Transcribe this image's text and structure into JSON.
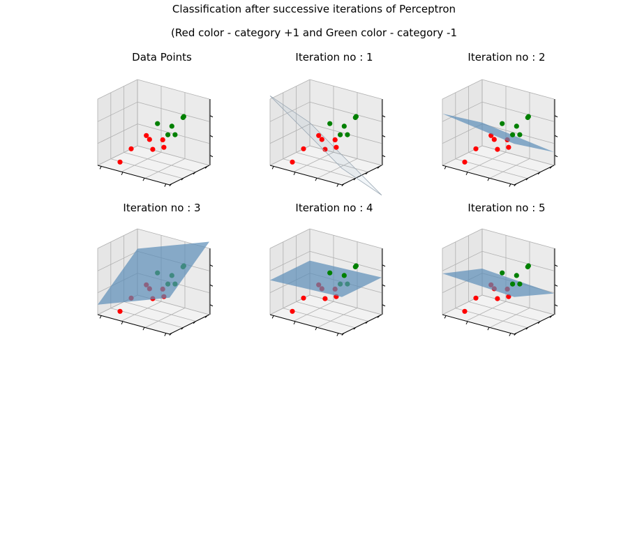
{
  "figure": {
    "title": "Classification after successive iterations of Perceptron",
    "subtitle": "(Red color - category +1  and Green color - category -1"
  },
  "colors": {
    "category_pos": "#ff0000",
    "category_neg": "#008000",
    "plane": "#5b8db8",
    "pane_gray": "#f2f2f2",
    "grid": "#b0b0b0"
  },
  "chart_data": [
    {
      "type": "scatter",
      "projection": "3d",
      "title": "Data Points",
      "grid": true,
      "series": [
        {
          "name": "category +1",
          "color": "#ff0000",
          "points": [
            [
              0.4,
              0.5,
              0.42
            ],
            [
              0.5,
              0.4,
              0.42
            ],
            [
              0.6,
              0.55,
              0.4
            ],
            [
              0.7,
              0.4,
              0.36
            ],
            [
              0.3,
              0.3,
              0.25
            ],
            [
              0.6,
              0.3,
              0.33
            ],
            [
              0.2,
              0.2,
              0.05
            ]
          ]
        },
        {
          "name": "category -1",
          "color": "#008000",
          "points": [
            [
              0.8,
              0.7,
              0.75
            ],
            [
              0.8,
              0.72,
              0.76
            ],
            [
              0.5,
              0.6,
              0.6
            ],
            [
              0.7,
              0.6,
              0.62
            ],
            [
              0.7,
              0.5,
              0.52
            ],
            [
              0.8,
              0.5,
              0.55
            ]
          ]
        }
      ],
      "plane": null
    },
    {
      "type": "scatter",
      "projection": "3d",
      "title": "Iteration no : 1",
      "grid": true,
      "series": [
        {
          "name": "category +1",
          "color": "#ff0000",
          "points": [
            [
              0.4,
              0.5,
              0.42
            ],
            [
              0.5,
              0.4,
              0.42
            ],
            [
              0.6,
              0.55,
              0.4
            ],
            [
              0.7,
              0.4,
              0.36
            ],
            [
              0.3,
              0.3,
              0.25
            ],
            [
              0.6,
              0.3,
              0.33
            ],
            [
              0.2,
              0.2,
              0.05
            ]
          ]
        },
        {
          "name": "category -1",
          "color": "#008000",
          "points": [
            [
              0.8,
              0.7,
              0.75
            ],
            [
              0.8,
              0.72,
              0.76
            ],
            [
              0.5,
              0.6,
              0.6
            ],
            [
              0.7,
              0.6,
              0.62
            ],
            [
              0.7,
              0.5,
              0.52
            ],
            [
              0.8,
              0.5,
              0.55
            ]
          ]
        }
      ],
      "plane": {
        "z00": 1.05,
        "z10": 0.25,
        "z01": 0.35,
        "z11": -0.45,
        "opacity": 0.08,
        "edge": true
      }
    },
    {
      "type": "scatter",
      "projection": "3d",
      "title": "Iteration no : 2",
      "grid": true,
      "series": [
        {
          "name": "category +1",
          "color": "#ff0000",
          "points": [
            [
              0.4,
              0.5,
              0.42
            ],
            [
              0.5,
              0.4,
              0.42
            ],
            [
              0.6,
              0.55,
              0.4
            ],
            [
              0.7,
              0.4,
              0.36
            ],
            [
              0.3,
              0.3,
              0.25
            ],
            [
              0.6,
              0.3,
              0.33
            ],
            [
              0.2,
              0.2,
              0.05
            ]
          ]
        },
        {
          "name": "category -1",
          "color": "#008000",
          "points": [
            [
              0.8,
              0.7,
              0.75
            ],
            [
              0.8,
              0.72,
              0.76
            ],
            [
              0.5,
              0.6,
              0.6
            ],
            [
              0.7,
              0.6,
              0.62
            ],
            [
              0.7,
              0.5,
              0.52
            ],
            [
              0.8,
              0.5,
              0.55
            ]
          ]
        }
      ],
      "plane": {
        "z00": 0.78,
        "z10": 0.62,
        "z01": 0.35,
        "z11": 0.2,
        "opacity": 0.7,
        "edge": false
      }
    },
    {
      "type": "scatter",
      "projection": "3d",
      "title": "Iteration no : 3",
      "grid": true,
      "series": [
        {
          "name": "category +1",
          "color": "#ff0000",
          "points": [
            [
              0.4,
              0.5,
              0.42
            ],
            [
              0.5,
              0.4,
              0.42
            ],
            [
              0.6,
              0.55,
              0.4
            ],
            [
              0.7,
              0.4,
              0.36
            ],
            [
              0.3,
              0.3,
              0.25
            ],
            [
              0.6,
              0.3,
              0.33
            ],
            [
              0.2,
              0.2,
              0.05
            ]
          ]
        },
        {
          "name": "category -1",
          "color": "#008000",
          "points": [
            [
              0.8,
              0.7,
              0.75
            ],
            [
              0.8,
              0.72,
              0.76
            ],
            [
              0.5,
              0.6,
              0.6
            ],
            [
              0.7,
              0.6,
              0.62
            ],
            [
              0.7,
              0.5,
              0.52
            ],
            [
              0.8,
              0.5,
              0.55
            ]
          ]
        }
      ],
      "plane": {
        "z00": 0.15,
        "z10": 0.55,
        "z01": 0.7,
        "z11": 1.1,
        "opacity": 0.7,
        "edge": false
      }
    },
    {
      "type": "scatter",
      "projection": "3d",
      "title": "Iteration no : 4",
      "grid": true,
      "series": [
        {
          "name": "category +1",
          "color": "#ff0000",
          "points": [
            [
              0.4,
              0.5,
              0.42
            ],
            [
              0.5,
              0.4,
              0.42
            ],
            [
              0.6,
              0.55,
              0.4
            ],
            [
              0.7,
              0.4,
              0.36
            ],
            [
              0.3,
              0.3,
              0.25
            ],
            [
              0.6,
              0.3,
              0.33
            ],
            [
              0.2,
              0.2,
              0.05
            ]
          ]
        },
        {
          "name": "category -1",
          "color": "#008000",
          "points": [
            [
              0.8,
              0.7,
              0.75
            ],
            [
              0.8,
              0.72,
              0.76
            ],
            [
              0.5,
              0.6,
              0.6
            ],
            [
              0.7,
              0.6,
              0.62
            ],
            [
              0.7,
              0.5,
              0.52
            ],
            [
              0.8,
              0.5,
              0.55
            ]
          ]
        }
      ],
      "plane": {
        "z00": 0.52,
        "z10": 0.56,
        "z01": 0.52,
        "z11": 0.56,
        "opacity": 0.7,
        "edge": false
      }
    },
    {
      "type": "scatter",
      "projection": "3d",
      "title": "Iteration no : 5",
      "grid": true,
      "series": [
        {
          "name": "category +1",
          "color": "#ff0000",
          "points": [
            [
              0.4,
              0.5,
              0.42
            ],
            [
              0.5,
              0.4,
              0.42
            ],
            [
              0.6,
              0.55,
              0.4
            ],
            [
              0.7,
              0.4,
              0.36
            ],
            [
              0.3,
              0.3,
              0.25
            ],
            [
              0.6,
              0.3,
              0.33
            ],
            [
              0.2,
              0.2,
              0.05
            ]
          ]
        },
        {
          "name": "category -1",
          "color": "#008000",
          "points": [
            [
              0.8,
              0.7,
              0.75
            ],
            [
              0.8,
              0.72,
              0.76
            ],
            [
              0.5,
              0.6,
              0.6
            ],
            [
              0.7,
              0.6,
              0.62
            ],
            [
              0.7,
              0.5,
              0.52
            ],
            [
              0.8,
              0.5,
              0.55
            ]
          ]
        }
      ],
      "plane": {
        "z00": 0.62,
        "z10": 0.56,
        "z01": 0.4,
        "z11": 0.32,
        "opacity": 0.7,
        "edge": false
      }
    }
  ]
}
